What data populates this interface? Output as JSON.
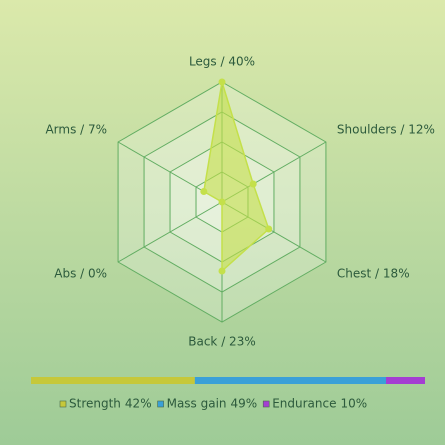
{
  "chart_data": [
    {
      "type": "radar",
      "categories": [
        "Legs / 40%",
        "Shoulders / 12%",
        "Chest / 18%",
        "Back / 23%",
        "Abs / 0%",
        "Arms / 7%"
      ],
      "values": [
        40,
        12,
        18,
        23,
        0,
        7
      ],
      "rlim": [
        0,
        40
      ],
      "rticks": [
        10,
        20,
        30,
        40
      ],
      "color": "#c4e04a",
      "grid": true
    },
    {
      "type": "stacked-bar-horizontal",
      "series": [
        {
          "name": "Strength",
          "color": "#c6c83a",
          "values": [
            42
          ],
          "value_labels": [
            "42%"
          ]
        },
        {
          "name": "Mass gain",
          "color": "#3aa0d8",
          "values": [
            49
          ],
          "value_labels": [
            "49%"
          ]
        },
        {
          "name": "Endurance",
          "color": "#a43ed2",
          "values": [
            10
          ],
          "value_labels": [
            "10%"
          ]
        }
      ],
      "legend": "bottom"
    }
  ]
}
